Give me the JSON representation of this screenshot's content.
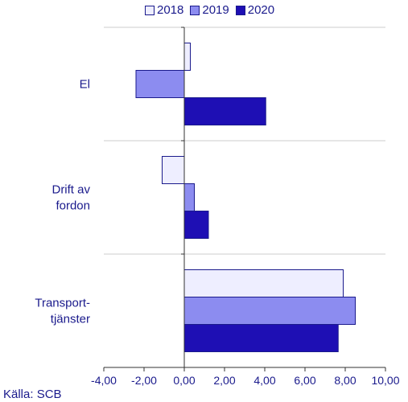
{
  "chart_data": {
    "type": "bar",
    "orientation": "horizontal",
    "categories": [
      [
        "El"
      ],
      [
        "Drift av",
        "fordon"
      ],
      [
        "Transport-",
        "tjänster"
      ]
    ],
    "series": [
      {
        "name": "2018",
        "values": [
          0.3,
          -1.1,
          7.9
        ],
        "color": "#eeeeff"
      },
      {
        "name": "2019",
        "values": [
          -2.4,
          0.5,
          8.5
        ],
        "color": "#8c8cf0"
      },
      {
        "name": "2020",
        "values": [
          4.05,
          1.2,
          7.65
        ],
        "color": "#1e0fb4"
      }
    ],
    "xlim": [
      -4,
      10
    ],
    "xticks": [
      -4,
      -2,
      0,
      2,
      4,
      6,
      8,
      10
    ],
    "tick_labels": [
      "-4,00",
      "-2,00",
      "0,00",
      "2,00",
      "4,00",
      "6,00",
      "8,00",
      "10,00"
    ],
    "legend_position": "top-center",
    "grid": false,
    "title": "",
    "xlabel": "",
    "ylabel": ""
  },
  "source": "Källa: SCB",
  "colors": {
    "text": "#1a1a8c",
    "outline": "#1a1a8c",
    "axis": "#333333",
    "separator": "#cccccc"
  }
}
